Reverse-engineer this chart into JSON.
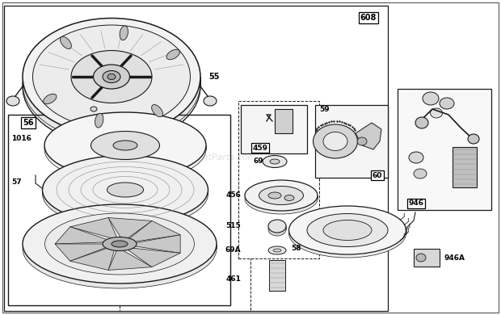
{
  "bg_color": "#ffffff",
  "line_color": "#1a1a1a",
  "watermark": "eReplacementParts.com",
  "fig_w": 6.2,
  "fig_h": 3.9,
  "xlim": [
    0,
    620
  ],
  "ylim": [
    0,
    390
  ]
}
